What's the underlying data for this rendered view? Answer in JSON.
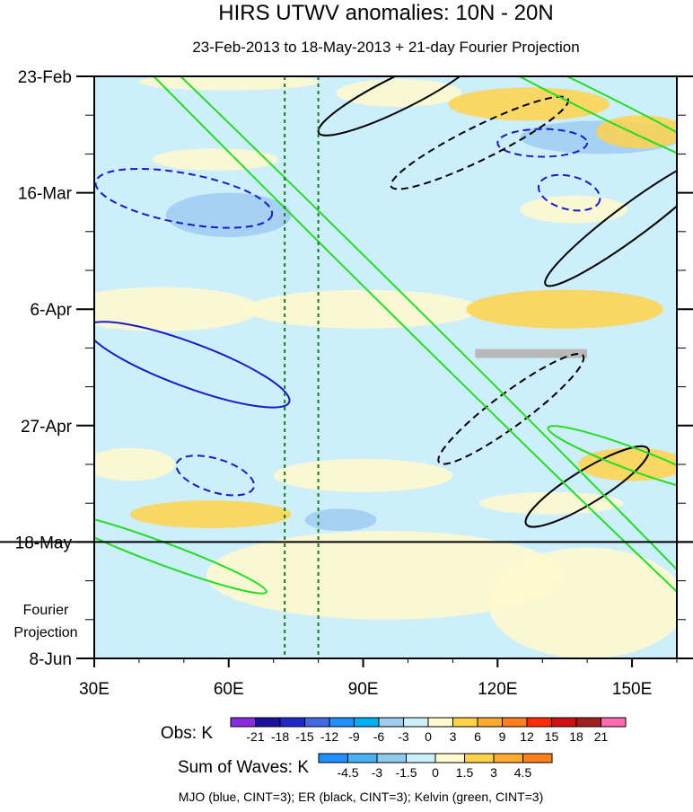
{
  "chart_data": {
    "type": "heatmap",
    "title": "HIRS UTWV anomalies: 10N - 20N",
    "subtitle": "23-Feb-2013 to 18-May-2013 + 21-day Fourier Projection",
    "xlabel": "",
    "ylabel": "",
    "x_axis": {
      "min": 30,
      "max": 160,
      "unit": "degrees east",
      "ticks": [
        30,
        60,
        90,
        120,
        150
      ],
      "tick_labels": [
        "30E",
        "60E",
        "90E",
        "120E",
        "150E"
      ]
    },
    "y_axis": {
      "reversed": true,
      "unit": "days since 23-Feb-2013",
      "min": 0,
      "max": 105,
      "ticks": [
        0,
        21,
        42,
        63,
        84,
        105
      ],
      "tick_labels": [
        "23-Feb",
        "16-Mar",
        "6-Apr",
        "27-Apr",
        "18-May",
        "8-Jun"
      ]
    },
    "observation_end_day": 84,
    "projection_label": [
      "Fourier",
      "Projection"
    ],
    "reference_lines_lon": [
      72.5,
      80
    ],
    "obs_colorbar": {
      "label": "Obs: K",
      "levels": [
        -21,
        -18,
        -15,
        -12,
        -9,
        -6,
        -3,
        0,
        3,
        6,
        9,
        12,
        15,
        18,
        21
      ],
      "colors": [
        "#8a2be2",
        "#1c10a0",
        "#2228c8",
        "#4169e1",
        "#1e90ff",
        "#00b0f0",
        "#9ecdf2",
        "#cdeefb",
        "#fffacd",
        "#ffd24a",
        "#ffaa30",
        "#ff7f1a",
        "#ff2a0a",
        "#d01010",
        "#a02020",
        "#ff69b4"
      ]
    },
    "waves_colorbar": {
      "label": "Sum of Waves: K",
      "levels": [
        -4.5,
        -3,
        -1.5,
        0,
        1.5,
        3,
        4.5
      ],
      "colors": [
        "#1e90ff",
        "#4ab2f2",
        "#8ec9ef",
        "#cdeefb",
        "#fffacd",
        "#ffd24a",
        "#ffaa30",
        "#ff7f1a"
      ]
    },
    "filled_anomalies": [
      {
        "lon": 60,
        "day": 1,
        "dlon": 20,
        "dday": 1.5,
        "value": 2
      },
      {
        "lon": 50,
        "day": 7,
        "dlon": 18,
        "dday": 2,
        "value": -2
      },
      {
        "lon": 42,
        "day": 19,
        "dlon": 12,
        "dday": 3,
        "value": -2
      },
      {
        "lon": 60,
        "day": 25,
        "dlon": 14,
        "dday": 4,
        "value": -4
      },
      {
        "lon": 57,
        "day": 15,
        "dlon": 14,
        "dday": 2,
        "value": 2
      },
      {
        "lon": 98,
        "day": 3,
        "dlon": 14,
        "dday": 2.5,
        "value": 2
      },
      {
        "lon": 100,
        "day": 13,
        "dlon": 16,
        "dday": 3,
        "value": -2
      },
      {
        "lon": 94,
        "day": 28,
        "dlon": 12,
        "dday": 3,
        "value": -2
      },
      {
        "lon": 127,
        "day": 5,
        "dlon": 18,
        "dday": 3,
        "value": 4
      },
      {
        "lon": 143,
        "day": 11,
        "dlon": 18,
        "dday": 3,
        "value": -4
      },
      {
        "lon": 152,
        "day": 10,
        "dlon": 10,
        "dday": 3,
        "value": 3
      },
      {
        "lon": 118,
        "day": 26,
        "dlon": 22,
        "dday": 3,
        "value": -2
      },
      {
        "lon": 137,
        "day": 24,
        "dlon": 12,
        "dday": 2.5,
        "value": 2
      },
      {
        "lon": 45,
        "day": 42,
        "dlon": 22,
        "dday": 4,
        "value": 2
      },
      {
        "lon": 90,
        "day": 42,
        "dlon": 26,
        "dday": 3.5,
        "value": 2
      },
      {
        "lon": 135,
        "day": 42,
        "dlon": 22,
        "dday": 3.5,
        "value": 3
      },
      {
        "lon": 47,
        "day": 56,
        "dlon": 16,
        "dday": 3,
        "value": -2
      },
      {
        "lon": 104,
        "day": 59,
        "dlon": 18,
        "dday": 3,
        "value": -2
      },
      {
        "lon": 140,
        "day": 56,
        "dlon": 18,
        "dday": 3,
        "value": -2
      },
      {
        "lon": 38,
        "day": 70,
        "dlon": 10,
        "dday": 3,
        "value": 2
      },
      {
        "lon": 90,
        "day": 72,
        "dlon": 20,
        "dday": 3,
        "value": 2
      },
      {
        "lon": 150,
        "day": 70,
        "dlon": 12,
        "dday": 3,
        "value": 3
      },
      {
        "lon": 85,
        "day": 80,
        "dlon": 8,
        "dday": 2,
        "value": -4
      },
      {
        "lon": 56,
        "day": 79,
        "dlon": 18,
        "dday": 2.5,
        "value": 3
      },
      {
        "lon": 132,
        "day": 77,
        "dlon": 16,
        "dday": 2,
        "value": 2
      },
      {
        "lon": 95,
        "day": 90,
        "dlon": 40,
        "dday": 8,
        "value": 1
      },
      {
        "lon": 140,
        "day": 95,
        "dlon": 22,
        "dday": 10,
        "value": 1
      }
    ],
    "missing_data": [
      {
        "lon_start": 115,
        "lon_end": 140,
        "day": 50
      }
    ],
    "wave_contours": {
      "legend": "MJO (blue, CINT=3); ER (black, CINT=3); Kelvin (green, CINT=3)",
      "mjo": [
        {
          "lon": 50,
          "day": 22,
          "dlon": 20,
          "dday": 4.5,
          "tilt": 1.5,
          "value": -3
        },
        {
          "lon": 51,
          "day": 52,
          "dlon": 24,
          "dday": 4,
          "tilt": 3,
          "value": 3
        },
        {
          "lon": 57,
          "day": 72,
          "dlon": 9,
          "dday": 3,
          "tilt": 2.5,
          "value": -3
        },
        {
          "lon": 130,
          "day": 12,
          "dlon": 10,
          "dday": 2.5,
          "tilt": 0,
          "value": -3
        },
        {
          "lon": 136,
          "day": 21,
          "dlon": 7,
          "dday": 3,
          "tilt": 2,
          "value": -3
        }
      ],
      "er": [
        {
          "lon": 98,
          "day": 3,
          "dlon": 20,
          "dday": 3,
          "tilt": -4,
          "value": 3
        },
        {
          "lon": 116,
          "day": 12,
          "dlon": 22,
          "dday": 3,
          "tilt": -4,
          "value": -3
        },
        {
          "lon": 150,
          "day": 26,
          "dlon": 24,
          "dday": 3,
          "tilt": -6,
          "value": 3
        },
        {
          "lon": 123,
          "day": 60,
          "dlon": 20,
          "dday": 3,
          "tilt": -6,
          "value": -3
        },
        {
          "lon": 140,
          "day": 74,
          "dlon": 16,
          "dday": 3,
          "tilt": -5,
          "value": 3
        }
      ],
      "kelvin": [
        {
          "lon": 95,
          "day": 39,
          "dlon": 130,
          "dday": 2,
          "tilt": 8,
          "value": 3
        },
        {
          "lon": 140,
          "day": 4,
          "dlon": 40,
          "dday": 2,
          "tilt": 4,
          "value": 3
        },
        {
          "lon": 150,
          "day": 69,
          "dlon": 20,
          "dday": 2,
          "tilt": 3,
          "value": 3
        },
        {
          "lon": 45,
          "day": 86,
          "dlon": 25,
          "dday": 2,
          "tilt": 3,
          "value": 3
        }
      ]
    }
  }
}
